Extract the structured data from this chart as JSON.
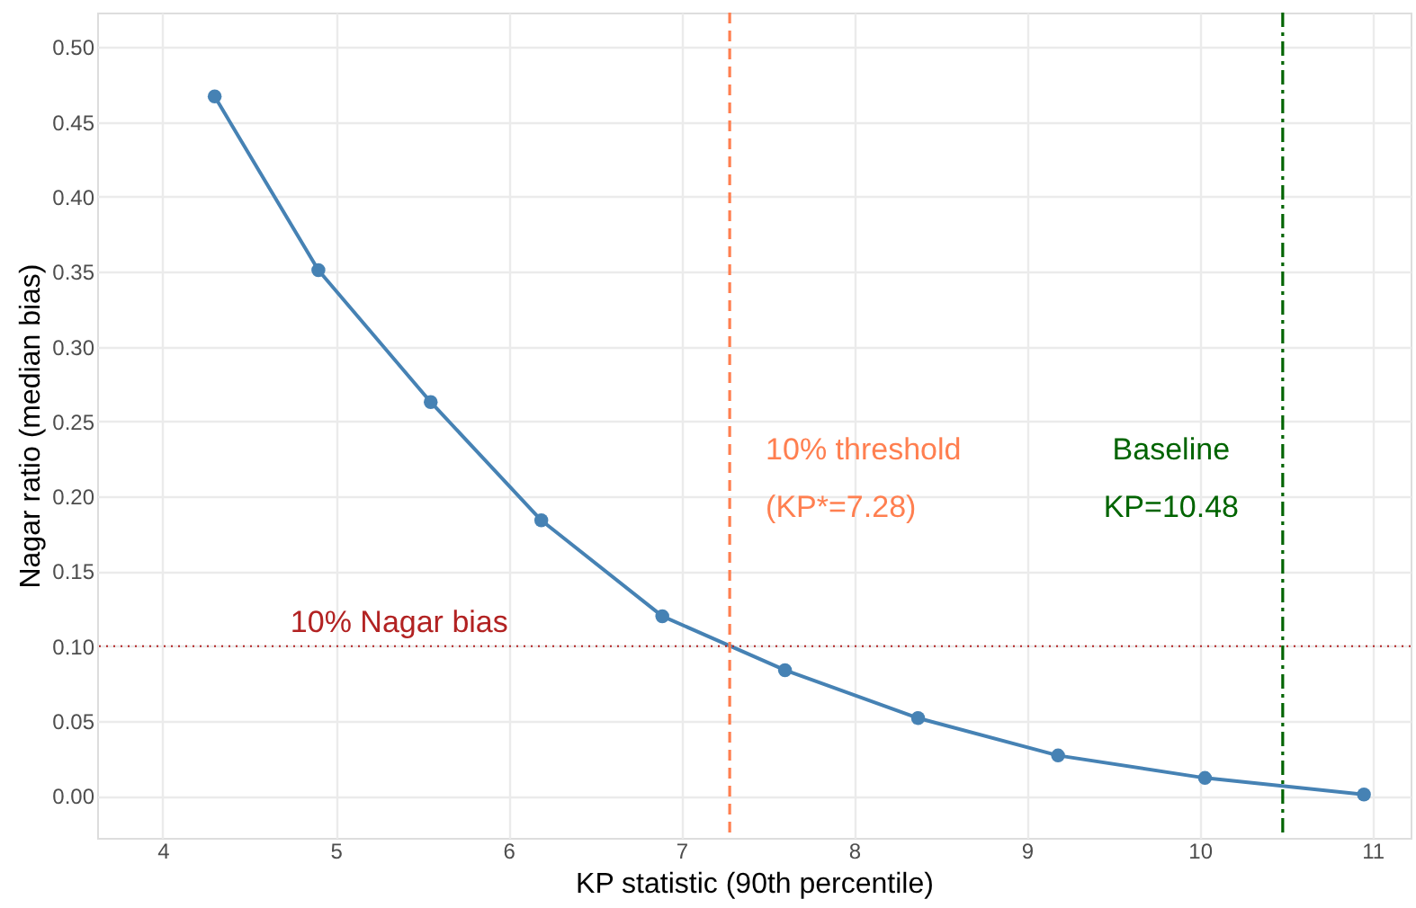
{
  "chart_data": {
    "type": "line",
    "xlabel": "KP statistic (90th percentile)",
    "ylabel": "Nagar ratio (median bias)",
    "x": [
      4.3,
      4.9,
      5.55,
      6.19,
      6.89,
      7.6,
      8.37,
      9.18,
      10.03,
      10.95
    ],
    "series": [
      {
        "color": "#4682b4",
        "values": [
          0.467,
          0.351,
          0.263,
          0.184,
          0.12,
          0.084,
          0.052,
          0.027,
          0.012,
          0.001
        ]
      }
    ],
    "xlim": [
      3.62,
      11.22
    ],
    "ylim": [
      -0.028,
      0.523
    ],
    "xticks": [
      4,
      5,
      6,
      7,
      8,
      9,
      10,
      11
    ],
    "yticks": [
      {
        "value": 0,
        "label": "0.00"
      },
      {
        "value": 0.05,
        "label": "0.05"
      },
      {
        "value": 0.1,
        "label": "0.10"
      },
      {
        "value": 0.15,
        "label": "0.15"
      },
      {
        "value": 0.2,
        "label": "0.20"
      },
      {
        "value": 0.25,
        "label": "0.25"
      },
      {
        "value": 0.3,
        "label": "0.30"
      },
      {
        "value": 0.35,
        "label": "0.35"
      },
      {
        "value": 0.4,
        "label": "0.40"
      },
      {
        "value": 0.45,
        "label": "0.45"
      },
      {
        "value": 0.5,
        "label": "0.50"
      }
    ],
    "ref_lines": [
      {
        "axis": "x",
        "value": 7.28,
        "label": "10% threshold\n(KP*=7.28)",
        "color": "#ff7f50",
        "line_style": "dashed"
      },
      {
        "axis": "x",
        "value": 10.48,
        "label": "Baseline\nKP=10.48",
        "color": "#006400",
        "line_style": "dashdot"
      },
      {
        "axis": "y",
        "value": 0.1,
        "label": "10% Nagar bias",
        "color": "#b22222",
        "line_style": "dotted"
      }
    ],
    "grid": true,
    "marker": "circle",
    "line_style": "solid"
  }
}
